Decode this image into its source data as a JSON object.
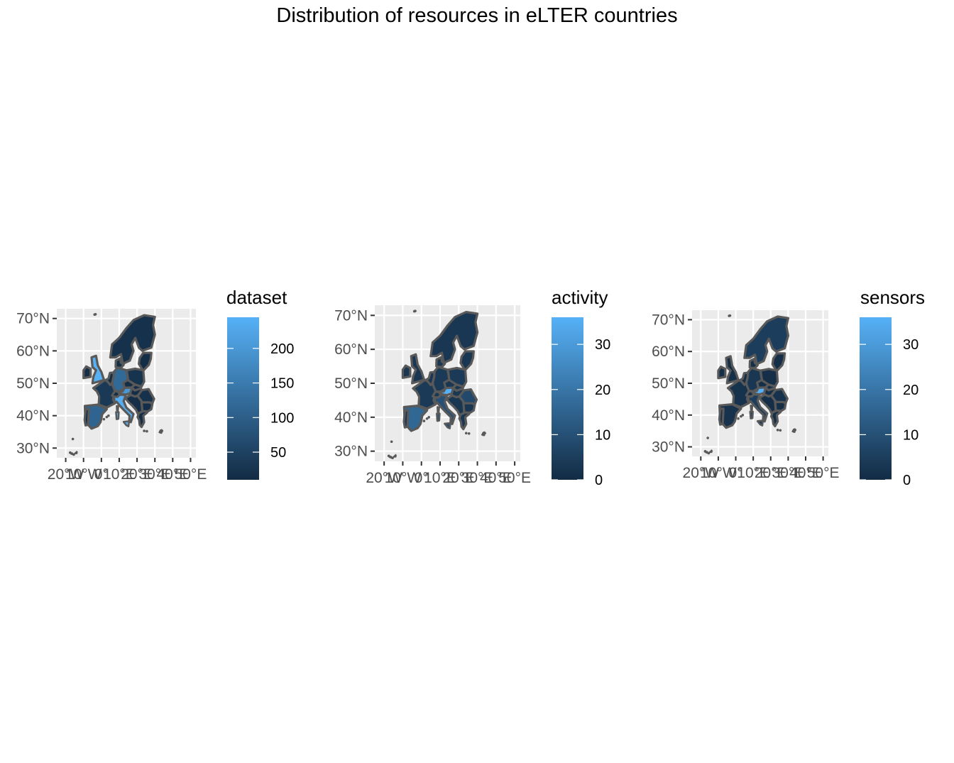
{
  "title": "Distribution of resources in eLTER countries",
  "colors": {
    "low": "#132b43",
    "high": "#56b1f7",
    "border": "#595959",
    "panel_bg": "#ebebeb",
    "grid": "#ffffff"
  },
  "map": {
    "lat_ticks": [
      "70°N",
      "60°N",
      "50°N",
      "40°N",
      "30°N"
    ],
    "lon_ticks": [
      "20°W",
      "10°W",
      "0°",
      "10°E",
      "20°E",
      "30°E",
      "40°E",
      "50°E"
    ]
  },
  "panels": [
    {
      "id": "dataset",
      "legend_title": "dataset",
      "legend_labels": [
        "200",
        "150",
        "100",
        "50"
      ],
      "legend_values": [
        200,
        150,
        100,
        50
      ],
      "scale_min": 10,
      "scale_max": 245,
      "fills": {
        "uk": 245,
        "de": 120,
        "it": 240,
        "at": 200,
        "es": 110,
        "fr": 35,
        "nordic": 20,
        "pl": 25,
        "ro": 20,
        "other": 15
      }
    },
    {
      "id": "activity",
      "legend_title": "activity",
      "legend_labels": [
        "30",
        "20",
        "10",
        "0"
      ],
      "legend_values": [
        30,
        20,
        10,
        0
      ],
      "scale_min": 0,
      "scale_max": 36,
      "fills": {
        "uk": 3,
        "de": 4,
        "it": 10,
        "at": 36,
        "es": 16,
        "fr": 4,
        "nordic": 3,
        "pl": 4,
        "ro": 8,
        "other": 3
      }
    },
    {
      "id": "sensors",
      "legend_title": "sensors",
      "legend_labels": [
        "30",
        "20",
        "10",
        "0"
      ],
      "legend_values": [
        30,
        20,
        10,
        0
      ],
      "scale_min": 0,
      "scale_max": 36,
      "fills": {
        "uk": 1,
        "de": 3,
        "it": 5,
        "at": 36,
        "es": 2,
        "fr": 2,
        "nordic": 5,
        "pl": 1,
        "ro": 2,
        "other": 1
      }
    }
  ]
}
